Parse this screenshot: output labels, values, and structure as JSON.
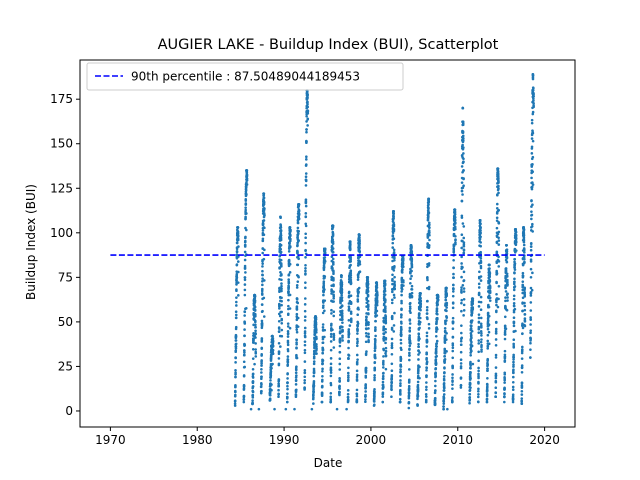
{
  "chart_data": {
    "type": "scatter",
    "title": "AUGIER LAKE - Buildup Index (BUI), Scatterplot",
    "xlabel": "Date",
    "ylabel": "Buildup Index (BUI)",
    "xlim": [
      1966.5,
      2023.5
    ],
    "ylim": [
      -9,
      197
    ],
    "x_ticks": [
      1970,
      1980,
      1990,
      2000,
      2010,
      2020
    ],
    "y_ticks": [
      0,
      25,
      50,
      75,
      100,
      125,
      150,
      175
    ],
    "legend_position": "top-left",
    "series": [
      {
        "name": "90th percentile : 87.50489044189453",
        "kind": "hline",
        "value": 87.50489044189453,
        "x_range": [
          1970,
          2020
        ],
        "color": "#0000ff",
        "style": "dashed"
      },
      {
        "name": "",
        "kind": "scatter",
        "color": "#1f77b4",
        "season_start_fraction": 0.36,
        "season_end_fraction": 0.74,
        "seasons": [
          {
            "year": 1984,
            "min": 3,
            "peak": 103
          },
          {
            "year": 1985,
            "min": 5,
            "peak": 135
          },
          {
            "year": 1986,
            "min": 4,
            "peak": 65
          },
          {
            "year": 1987,
            "min": 10,
            "peak": 122
          },
          {
            "year": 1988,
            "min": 5,
            "peak": 42
          },
          {
            "year": 1989,
            "min": 8,
            "peak": 109
          },
          {
            "year": 1990,
            "min": 5,
            "peak": 103
          },
          {
            "year": 1991,
            "min": 8,
            "peak": 116
          },
          {
            "year": 1992,
            "min": 10,
            "peak": 180
          },
          {
            "year": 1993,
            "min": 3,
            "peak": 53
          },
          {
            "year": 1994,
            "min": 5,
            "peak": 91
          },
          {
            "year": 1995,
            "min": 5,
            "peak": 104
          },
          {
            "year": 1996,
            "min": 6,
            "peak": 76
          },
          {
            "year": 1997,
            "min": 5,
            "peak": 95
          },
          {
            "year": 1998,
            "min": 5,
            "peak": 99
          },
          {
            "year": 1999,
            "min": 3,
            "peak": 75
          },
          {
            "year": 2000,
            "min": 3,
            "peak": 72
          },
          {
            "year": 2001,
            "min": 5,
            "peak": 73
          },
          {
            "year": 2002,
            "min": 8,
            "peak": 112
          },
          {
            "year": 2003,
            "min": 5,
            "peak": 87
          },
          {
            "year": 2004,
            "min": 1,
            "peak": 93
          },
          {
            "year": 2005,
            "min": 3,
            "peak": 66
          },
          {
            "year": 2006,
            "min": 5,
            "peak": 119
          },
          {
            "year": 2007,
            "min": 3,
            "peak": 65
          },
          {
            "year": 2008,
            "min": 1,
            "peak": 69
          },
          {
            "year": 2009,
            "min": 5,
            "peak": 113
          },
          {
            "year": 2010,
            "min": 10,
            "peak": 170
          },
          {
            "year": 2011,
            "min": 3,
            "peak": 63
          },
          {
            "year": 2012,
            "min": 5,
            "peak": 107
          },
          {
            "year": 2013,
            "min": 5,
            "peak": 82
          },
          {
            "year": 2014,
            "min": 8,
            "peak": 136
          },
          {
            "year": 2015,
            "min": 5,
            "peak": 93
          },
          {
            "year": 2016,
            "min": 5,
            "peak": 102
          },
          {
            "year": 2017,
            "min": 3,
            "peak": 103
          },
          {
            "year": 2018,
            "min": 30,
            "peak": 189
          }
        ],
        "outliers": [
          {
            "x": 1986.2,
            "y": 1
          },
          {
            "x": 1987.1,
            "y": 1
          },
          {
            "x": 1988.9,
            "y": 1
          },
          {
            "x": 1990.2,
            "y": 1
          },
          {
            "x": 1991.2,
            "y": 1
          },
          {
            "x": 1993.2,
            "y": 1
          },
          {
            "x": 1996.1,
            "y": 1
          },
          {
            "x": 1997.2,
            "y": 1
          },
          {
            "x": 2008.8,
            "y": 1
          }
        ]
      }
    ]
  }
}
